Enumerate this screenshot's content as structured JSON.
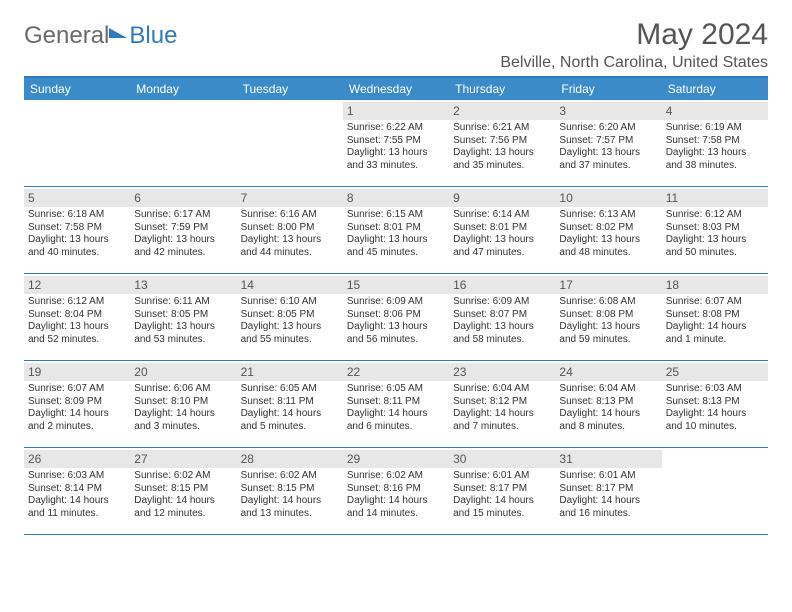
{
  "brand": {
    "part1": "General",
    "part2": "Blue"
  },
  "header": {
    "month_title": "May 2024",
    "location": "Belville, North Carolina, United States"
  },
  "calendar": {
    "day_headers": [
      "Sunday",
      "Monday",
      "Tuesday",
      "Wednesday",
      "Thursday",
      "Friday",
      "Saturday"
    ],
    "header_bg": "#3b8bc9",
    "border_color": "#2f7ac0",
    "daynum_bg": "#e7e7e7",
    "text_color": "#333333",
    "font_size_body": 10,
    "font_size_header": 12,
    "weeks": [
      [
        null,
        null,
        null,
        {
          "n": "1",
          "sunrise": "Sunrise: 6:22 AM",
          "sunset": "Sunset: 7:55 PM",
          "day1": "Daylight: 13 hours",
          "day2": "and 33 minutes."
        },
        {
          "n": "2",
          "sunrise": "Sunrise: 6:21 AM",
          "sunset": "Sunset: 7:56 PM",
          "day1": "Daylight: 13 hours",
          "day2": "and 35 minutes."
        },
        {
          "n": "3",
          "sunrise": "Sunrise: 6:20 AM",
          "sunset": "Sunset: 7:57 PM",
          "day1": "Daylight: 13 hours",
          "day2": "and 37 minutes."
        },
        {
          "n": "4",
          "sunrise": "Sunrise: 6:19 AM",
          "sunset": "Sunset: 7:58 PM",
          "day1": "Daylight: 13 hours",
          "day2": "and 38 minutes."
        }
      ],
      [
        {
          "n": "5",
          "sunrise": "Sunrise: 6:18 AM",
          "sunset": "Sunset: 7:58 PM",
          "day1": "Daylight: 13 hours",
          "day2": "and 40 minutes."
        },
        {
          "n": "6",
          "sunrise": "Sunrise: 6:17 AM",
          "sunset": "Sunset: 7:59 PM",
          "day1": "Daylight: 13 hours",
          "day2": "and 42 minutes."
        },
        {
          "n": "7",
          "sunrise": "Sunrise: 6:16 AM",
          "sunset": "Sunset: 8:00 PM",
          "day1": "Daylight: 13 hours",
          "day2": "and 44 minutes."
        },
        {
          "n": "8",
          "sunrise": "Sunrise: 6:15 AM",
          "sunset": "Sunset: 8:01 PM",
          "day1": "Daylight: 13 hours",
          "day2": "and 45 minutes."
        },
        {
          "n": "9",
          "sunrise": "Sunrise: 6:14 AM",
          "sunset": "Sunset: 8:01 PM",
          "day1": "Daylight: 13 hours",
          "day2": "and 47 minutes."
        },
        {
          "n": "10",
          "sunrise": "Sunrise: 6:13 AM",
          "sunset": "Sunset: 8:02 PM",
          "day1": "Daylight: 13 hours",
          "day2": "and 48 minutes."
        },
        {
          "n": "11",
          "sunrise": "Sunrise: 6:12 AM",
          "sunset": "Sunset: 8:03 PM",
          "day1": "Daylight: 13 hours",
          "day2": "and 50 minutes."
        }
      ],
      [
        {
          "n": "12",
          "sunrise": "Sunrise: 6:12 AM",
          "sunset": "Sunset: 8:04 PM",
          "day1": "Daylight: 13 hours",
          "day2": "and 52 minutes."
        },
        {
          "n": "13",
          "sunrise": "Sunrise: 6:11 AM",
          "sunset": "Sunset: 8:05 PM",
          "day1": "Daylight: 13 hours",
          "day2": "and 53 minutes."
        },
        {
          "n": "14",
          "sunrise": "Sunrise: 6:10 AM",
          "sunset": "Sunset: 8:05 PM",
          "day1": "Daylight: 13 hours",
          "day2": "and 55 minutes."
        },
        {
          "n": "15",
          "sunrise": "Sunrise: 6:09 AM",
          "sunset": "Sunset: 8:06 PM",
          "day1": "Daylight: 13 hours",
          "day2": "and 56 minutes."
        },
        {
          "n": "16",
          "sunrise": "Sunrise: 6:09 AM",
          "sunset": "Sunset: 8:07 PM",
          "day1": "Daylight: 13 hours",
          "day2": "and 58 minutes."
        },
        {
          "n": "17",
          "sunrise": "Sunrise: 6:08 AM",
          "sunset": "Sunset: 8:08 PM",
          "day1": "Daylight: 13 hours",
          "day2": "and 59 minutes."
        },
        {
          "n": "18",
          "sunrise": "Sunrise: 6:07 AM",
          "sunset": "Sunset: 8:08 PM",
          "day1": "Daylight: 14 hours",
          "day2": "and 1 minute."
        }
      ],
      [
        {
          "n": "19",
          "sunrise": "Sunrise: 6:07 AM",
          "sunset": "Sunset: 8:09 PM",
          "day1": "Daylight: 14 hours",
          "day2": "and 2 minutes."
        },
        {
          "n": "20",
          "sunrise": "Sunrise: 6:06 AM",
          "sunset": "Sunset: 8:10 PM",
          "day1": "Daylight: 14 hours",
          "day2": "and 3 minutes."
        },
        {
          "n": "21",
          "sunrise": "Sunrise: 6:05 AM",
          "sunset": "Sunset: 8:11 PM",
          "day1": "Daylight: 14 hours",
          "day2": "and 5 minutes."
        },
        {
          "n": "22",
          "sunrise": "Sunrise: 6:05 AM",
          "sunset": "Sunset: 8:11 PM",
          "day1": "Daylight: 14 hours",
          "day2": "and 6 minutes."
        },
        {
          "n": "23",
          "sunrise": "Sunrise: 6:04 AM",
          "sunset": "Sunset: 8:12 PM",
          "day1": "Daylight: 14 hours",
          "day2": "and 7 minutes."
        },
        {
          "n": "24",
          "sunrise": "Sunrise: 6:04 AM",
          "sunset": "Sunset: 8:13 PM",
          "day1": "Daylight: 14 hours",
          "day2": "and 8 minutes."
        },
        {
          "n": "25",
          "sunrise": "Sunrise: 6:03 AM",
          "sunset": "Sunset: 8:13 PM",
          "day1": "Daylight: 14 hours",
          "day2": "and 10 minutes."
        }
      ],
      [
        {
          "n": "26",
          "sunrise": "Sunrise: 6:03 AM",
          "sunset": "Sunset: 8:14 PM",
          "day1": "Daylight: 14 hours",
          "day2": "and 11 minutes."
        },
        {
          "n": "27",
          "sunrise": "Sunrise: 6:02 AM",
          "sunset": "Sunset: 8:15 PM",
          "day1": "Daylight: 14 hours",
          "day2": "and 12 minutes."
        },
        {
          "n": "28",
          "sunrise": "Sunrise: 6:02 AM",
          "sunset": "Sunset: 8:15 PM",
          "day1": "Daylight: 14 hours",
          "day2": "and 13 minutes."
        },
        {
          "n": "29",
          "sunrise": "Sunrise: 6:02 AM",
          "sunset": "Sunset: 8:16 PM",
          "day1": "Daylight: 14 hours",
          "day2": "and 14 minutes."
        },
        {
          "n": "30",
          "sunrise": "Sunrise: 6:01 AM",
          "sunset": "Sunset: 8:17 PM",
          "day1": "Daylight: 14 hours",
          "day2": "and 15 minutes."
        },
        {
          "n": "31",
          "sunrise": "Sunrise: 6:01 AM",
          "sunset": "Sunset: 8:17 PM",
          "day1": "Daylight: 14 hours",
          "day2": "and 16 minutes."
        },
        null
      ]
    ]
  }
}
